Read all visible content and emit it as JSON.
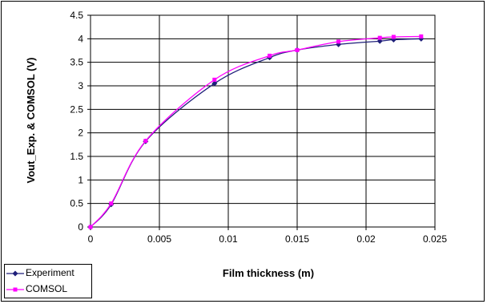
{
  "chart_data": {
    "type": "line",
    "xlabel": "Film thickness (m)",
    "ylabel": "Vout_Exp. & COMSOL (V)",
    "xlim": [
      0,
      0.025
    ],
    "ylim": [
      0,
      4.5
    ],
    "x_ticks": [
      "0",
      "0.005",
      "0.01",
      "0.015",
      "0.02",
      "0.025"
    ],
    "y_ticks": [
      "0",
      "0.5",
      "1",
      "1.5",
      "2",
      "2.5",
      "3",
      "3.5",
      "4",
      "4.5"
    ],
    "grid": true,
    "legend_position": "bottom-left",
    "series": [
      {
        "name": "Experiment",
        "color": "#1f1f7a",
        "marker": "diamond",
        "x": [
          0,
          0.0015,
          0.004,
          0.009,
          0.013,
          0.015,
          0.018,
          0.021,
          0.022,
          0.024
        ],
        "y": [
          0,
          0.48,
          1.82,
          3.05,
          3.6,
          3.76,
          3.88,
          3.95,
          3.98,
          4.0
        ]
      },
      {
        "name": "COMSOL",
        "color": "#ff00ff",
        "marker": "square",
        "x": [
          0,
          0.0015,
          0.004,
          0.009,
          0.013,
          0.015,
          0.018,
          0.021,
          0.022,
          0.024
        ],
        "y": [
          0,
          0.5,
          1.83,
          3.13,
          3.64,
          3.76,
          3.94,
          4.02,
          4.04,
          4.05
        ]
      }
    ]
  }
}
